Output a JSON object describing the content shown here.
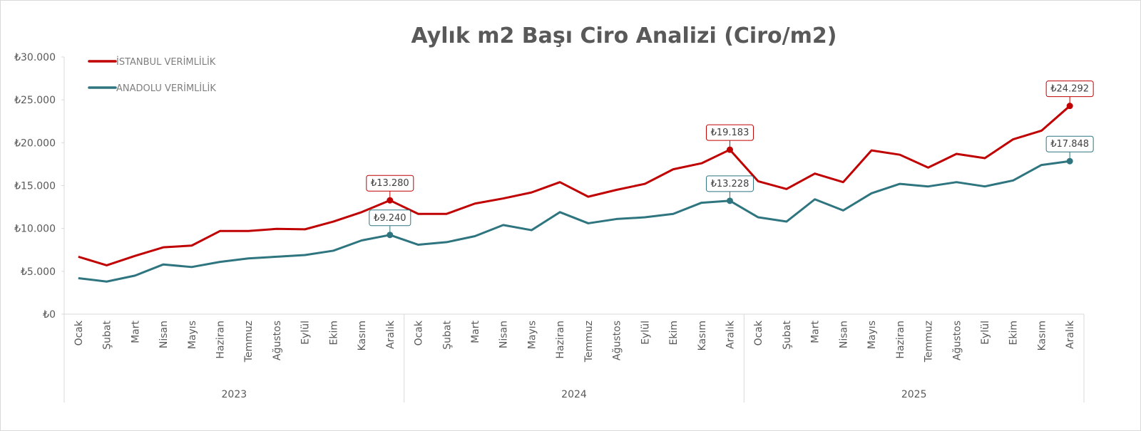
{
  "chart_data": {
    "type": "line",
    "title": "Aylık m2 Başı Ciro Analizi (Ciro/m2)",
    "xlabel": "",
    "ylabel": "",
    "ylim": [
      0,
      30000
    ],
    "y_ticks": [
      0,
      5000,
      10000,
      15000,
      20000,
      25000,
      30000
    ],
    "y_tick_labels": [
      "₺0",
      "₺5.000",
      "₺10.000",
      "₺15.000",
      "₺20.000",
      "₺25.000",
      "₺30.000"
    ],
    "grid": false,
    "legend_position": "top-left",
    "years": [
      "2023",
      "2024",
      "2025"
    ],
    "months": [
      "Ocak",
      "Şubat",
      "Mart",
      "Nisan",
      "Mayıs",
      "Haziran",
      "Temmuz",
      "Ağustos",
      "Eylül",
      "Ekim",
      "Kasım",
      "Aralık"
    ],
    "series": [
      {
        "name": "İSTANBUL VERİMLİLİK",
        "color": "#c00000",
        "values": [
          6700,
          5700,
          6800,
          7800,
          8000,
          9700,
          9700,
          9950,
          9900,
          10800,
          11900,
          13280,
          11700,
          11700,
          12900,
          13500,
          14200,
          15400,
          13700,
          14500,
          15200,
          16900,
          17600,
          19183,
          15500,
          14600,
          16400,
          15400,
          19100,
          18600,
          17100,
          18700,
          18200,
          20400,
          21400,
          24292
        ],
        "labels": [
          {
            "index": 11,
            "text": "₺13.280"
          },
          {
            "index": 23,
            "text": "₺19.183"
          },
          {
            "index": 35,
            "text": "₺24.292"
          }
        ]
      },
      {
        "name": "ANADOLU VERİMLİLİK",
        "color": "#2e7580",
        "values": [
          4200,
          3800,
          4500,
          5800,
          5500,
          6100,
          6500,
          6700,
          6900,
          7400,
          8600,
          9240,
          8100,
          8400,
          9100,
          10400,
          9800,
          11900,
          10600,
          11100,
          11300,
          11700,
          13000,
          13228,
          11300,
          10800,
          13400,
          12100,
          14100,
          15200,
          14900,
          15400,
          14900,
          15600,
          17400,
          17848
        ],
        "labels": [
          {
            "index": 11,
            "text": "₺9.240"
          },
          {
            "index": 23,
            "text": "₺13.228"
          },
          {
            "index": 35,
            "text": "₺17.848"
          }
        ]
      }
    ]
  }
}
